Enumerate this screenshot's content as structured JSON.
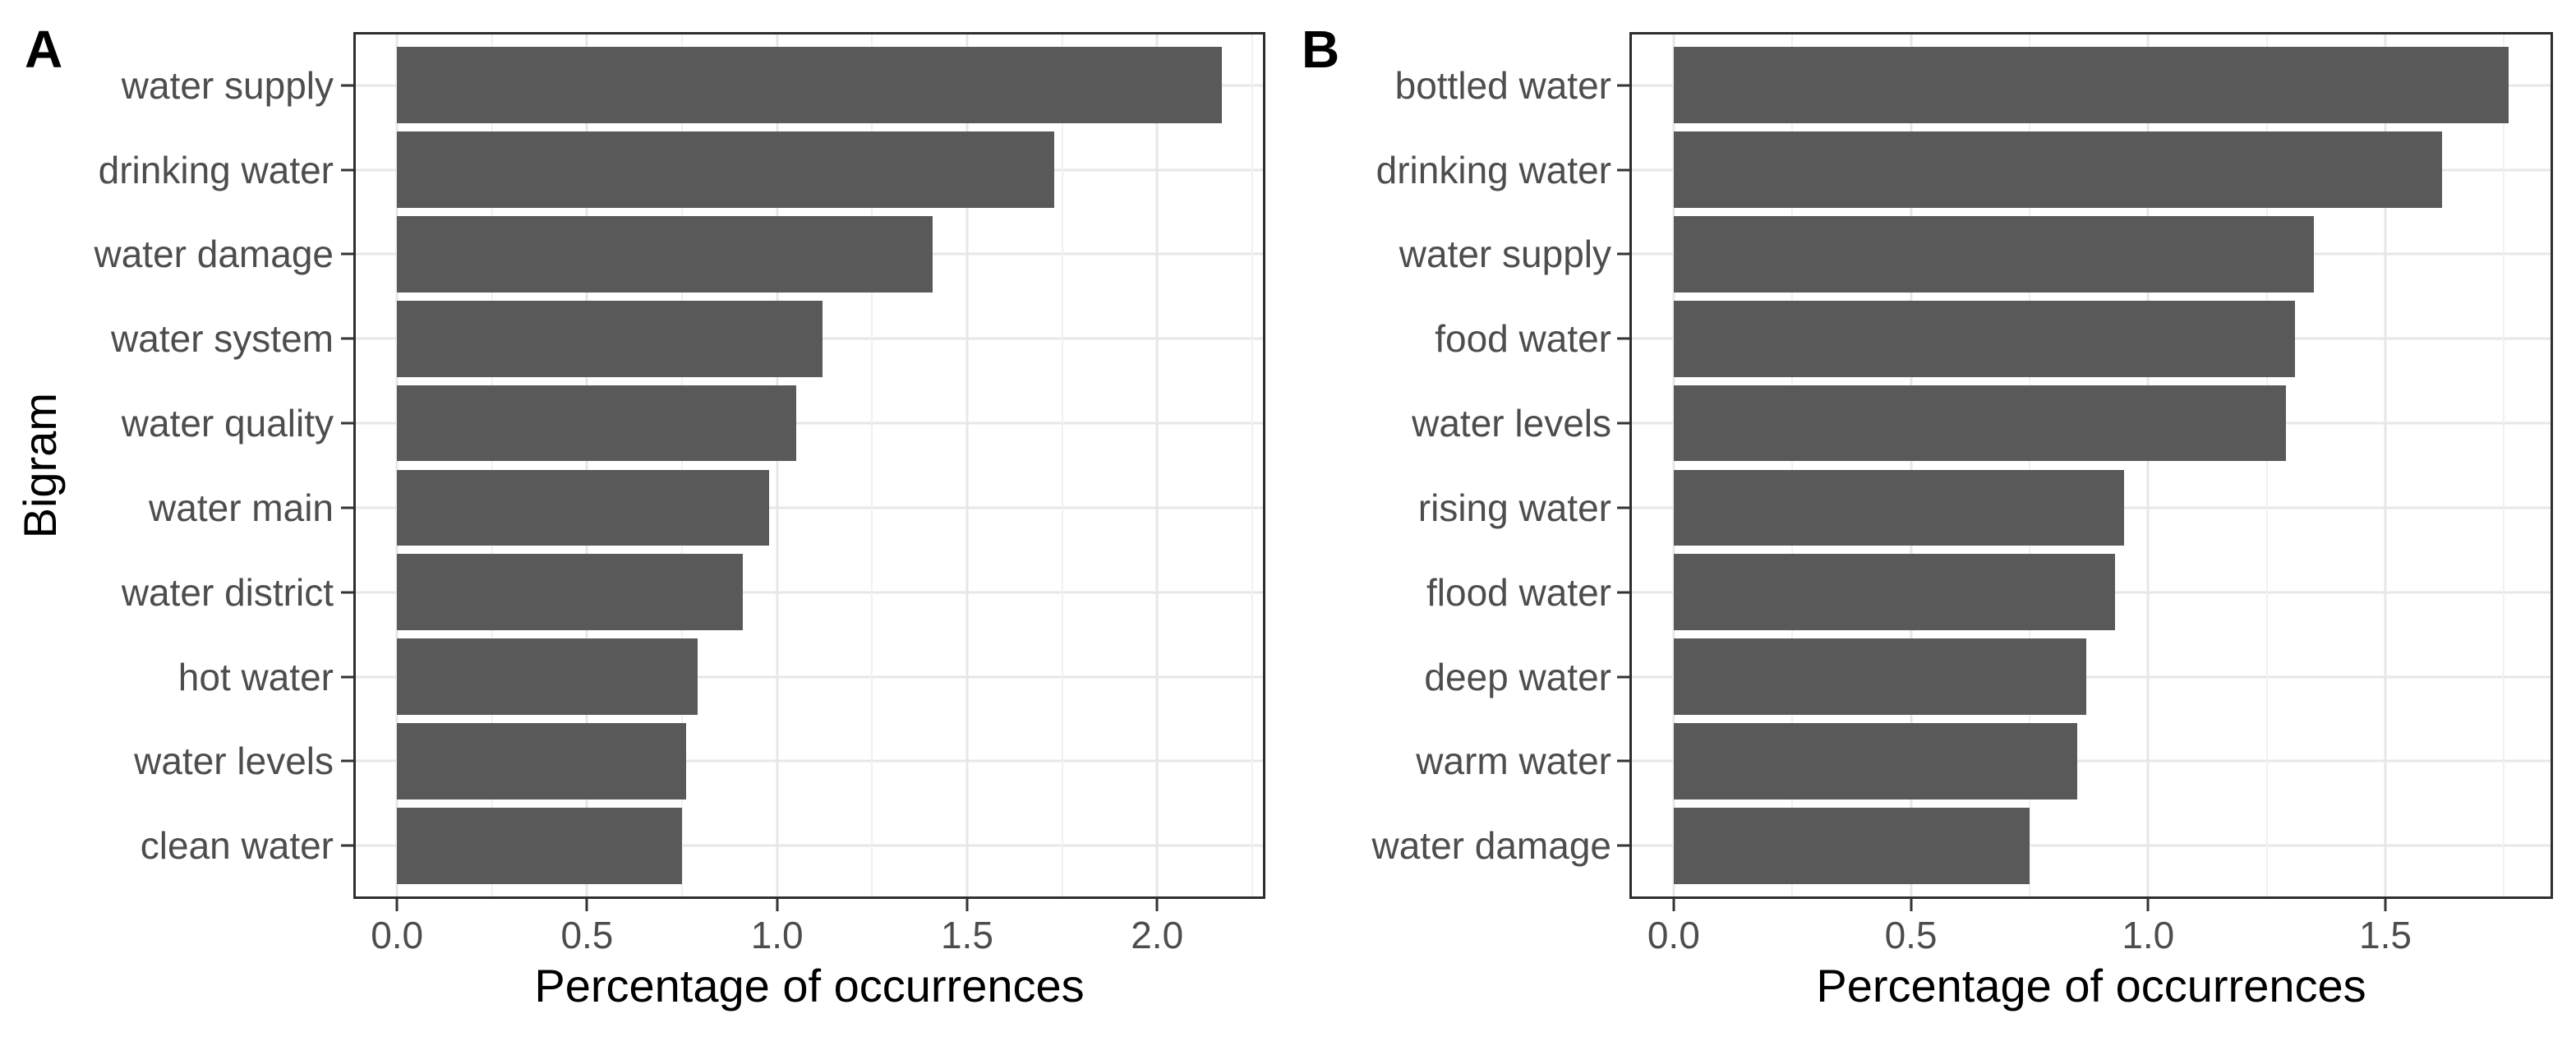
{
  "figure": {
    "background": "#ffffff",
    "bar_color": "#595959",
    "axis_text_color": "#4d4d4d",
    "title_color": "#000000",
    "panel_border_color": "#2e2e2e",
    "grid_major_color": "#e7e7e7",
    "grid_minor_color": "#f1f1f1"
  },
  "chart_data": [
    {
      "type": "bar",
      "orientation": "horizontal",
      "panel_tag": "A",
      "ylabel": "Bigram",
      "xlabel": "Percentage of occurrences",
      "categories": [
        "water supply",
        "drinking water",
        "water damage",
        "water system",
        "water quality",
        "water main",
        "water district",
        "hot water",
        "water levels",
        "clean water"
      ],
      "values": [
        2.17,
        1.73,
        1.41,
        1.12,
        1.05,
        0.98,
        0.91,
        0.79,
        0.76,
        0.75
      ],
      "x_ticks": [
        0.0,
        0.5,
        1.0,
        1.5,
        2.0
      ],
      "x_tick_labels": [
        "0.0",
        "0.5",
        "1.0",
        "1.5",
        "2.0"
      ],
      "x_minor_step": 0.25,
      "xlim": [
        -0.109,
        2.279
      ],
      "expansion_mult": 0.05,
      "grid": true,
      "legend": "none"
    },
    {
      "type": "bar",
      "orientation": "horizontal",
      "panel_tag": "B",
      "ylabel": "",
      "xlabel": "Percentage of occurrences",
      "categories": [
        "bottled water",
        "drinking water",
        "water supply",
        "food water",
        "water levels",
        "rising water",
        "flood water",
        "deep water",
        "warm water",
        "water damage"
      ],
      "values": [
        1.76,
        1.62,
        1.35,
        1.31,
        1.29,
        0.95,
        0.93,
        0.87,
        0.85,
        0.75
      ],
      "x_ticks": [
        0.0,
        0.5,
        1.0,
        1.5
      ],
      "x_tick_labels": [
        "0.0",
        "0.5",
        "1.0",
        "1.5"
      ],
      "x_minor_step": 0.25,
      "xlim": [
        -0.088,
        1.844
      ],
      "expansion_mult": 0.05,
      "grid": true,
      "legend": "none"
    }
  ]
}
